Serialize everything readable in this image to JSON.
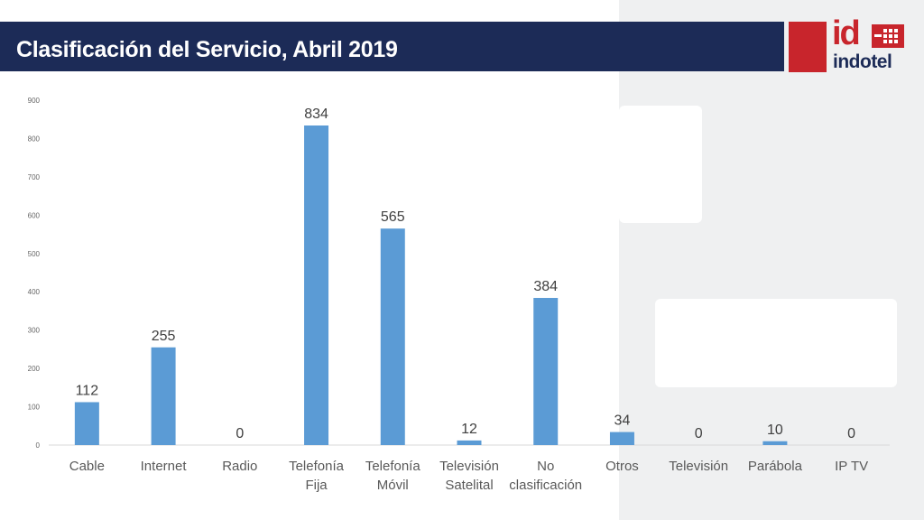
{
  "header": {
    "title": "Clasificación del Servicio, Abril 2019"
  },
  "logo": {
    "mark": "id",
    "wordmark": "indotel"
  },
  "colors": {
    "bar": "#5b9bd5",
    "header": "#1c2b57",
    "brand_red": "#c8252c"
  },
  "chart_data": {
    "type": "bar",
    "title": "",
    "xlabel": "",
    "ylabel": "",
    "categories": [
      [
        "Cable"
      ],
      [
        "Internet"
      ],
      [
        "Radio"
      ],
      [
        "Telefonía",
        "Fija"
      ],
      [
        "Telefonía",
        "Móvil"
      ],
      [
        "Televisión",
        "Satelital"
      ],
      [
        "No",
        "clasificación"
      ],
      [
        "Otros"
      ],
      [
        "Televisión"
      ],
      [
        "Parábola"
      ],
      [
        "IP TV"
      ]
    ],
    "values": [
      112,
      255,
      0,
      834,
      565,
      12,
      384,
      34,
      0,
      10,
      0
    ],
    "ylim": [
      0,
      900
    ],
    "yticks": [
      0,
      100,
      200,
      300,
      400,
      500,
      600,
      700,
      800,
      900
    ],
    "grid": false,
    "legend": "none"
  }
}
